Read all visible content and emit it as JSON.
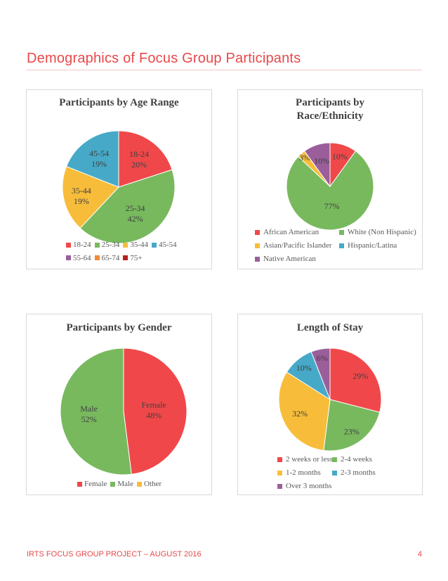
{
  "page": {
    "title": "Demographics of Focus Group Participants",
    "footer": "IRTS FOCUS GROUP PROJECT – AUGUST 2016",
    "page_number": "4"
  },
  "colors": {
    "red": "#f0484a",
    "green": "#78b95e",
    "yellow": "#f7bd3a",
    "blue": "#46a9c8",
    "purple": "#9a5f9a",
    "orange": "#f08a3a",
    "darkred": "#b81f1f",
    "accent": "#e8484a"
  },
  "chart_data": [
    {
      "type": "pie",
      "title": "Participants by Age Range",
      "slices": [
        {
          "label": "18-24",
          "value": 20,
          "color": "#f0484a",
          "text": "18-24\n20%"
        },
        {
          "label": "25-34",
          "value": 42,
          "color": "#78b95e",
          "text": "25-34\n42%"
        },
        {
          "label": "35-44",
          "value": 19,
          "color": "#f7bd3a",
          "text": "35-44\n19%"
        },
        {
          "label": "45-54",
          "value": 19,
          "color": "#46a9c8",
          "text": "45-54\n19%"
        }
      ],
      "legend": [
        {
          "label": "18-24",
          "color": "#f0484a"
        },
        {
          "label": "25-34",
          "color": "#78b95e"
        },
        {
          "label": "35-44",
          "color": "#f7bd3a"
        },
        {
          "label": "45-54",
          "color": "#46a9c8"
        },
        {
          "label": "55-64",
          "color": "#9a5f9a"
        },
        {
          "label": "65-74",
          "color": "#f08a3a"
        },
        {
          "label": "75+",
          "color": "#b81f1f"
        }
      ],
      "legend_position": "bottom"
    },
    {
      "type": "pie",
      "title": "Participants by Race/Ethnicity",
      "title_lines": [
        "Participants by",
        "Race/Ethnicity"
      ],
      "slices": [
        {
          "label": "African American",
          "value": 10,
          "color": "#f0484a",
          "text": "10%"
        },
        {
          "label": "White (Non Hispanic)",
          "value": 77,
          "color": "#78b95e",
          "text": "77%"
        },
        {
          "label": "Asian/Pacific Islander",
          "value": 3,
          "color": "#f7bd3a",
          "text": "3%"
        },
        {
          "label": "Hispanic/Latina",
          "value": 0,
          "color": "#46a9c8",
          "text": ""
        },
        {
          "label": "Native American",
          "value": 10,
          "color": "#9a5f9a",
          "text": "10%"
        }
      ],
      "legend": [
        {
          "label": "African American",
          "color": "#f0484a"
        },
        {
          "label": "White (Non Hispanic)",
          "color": "#78b95e"
        },
        {
          "label": "Asian/Pacific Islander",
          "color": "#f7bd3a"
        },
        {
          "label": "Hispanic/Latina",
          "color": "#46a9c8"
        },
        {
          "label": "Native American",
          "color": "#9a5f9a"
        }
      ],
      "legend_position": "bottom"
    },
    {
      "type": "pie",
      "title": "Participants by Gender",
      "slices": [
        {
          "label": "Female",
          "value": 48,
          "color": "#f0484a",
          "text": "Female\n48%"
        },
        {
          "label": "Male",
          "value": 52,
          "color": "#78b95e",
          "text": "Male\n52%"
        },
        {
          "label": "Other",
          "value": 0,
          "color": "#f7bd3a",
          "text": ""
        }
      ],
      "legend": [
        {
          "label": "Female",
          "color": "#f0484a"
        },
        {
          "label": "Male",
          "color": "#78b95e"
        },
        {
          "label": "Other",
          "color": "#f7bd3a"
        }
      ],
      "legend_position": "bottom"
    },
    {
      "type": "pie",
      "title": "Length of Stay",
      "slices": [
        {
          "label": "2 weeks or less",
          "value": 29,
          "color": "#f0484a",
          "text": "29%"
        },
        {
          "label": "2-4 weeks",
          "value": 23,
          "color": "#78b95e",
          "text": "23%"
        },
        {
          "label": "1-2 months",
          "value": 32,
          "color": "#f7bd3a",
          "text": "32%"
        },
        {
          "label": "2-3 months",
          "value": 10,
          "color": "#46a9c8",
          "text": "10%"
        },
        {
          "label": "Over 3 months",
          "value": 6,
          "color": "#9a5f9a",
          "text": "6%"
        }
      ],
      "legend": [
        {
          "label": "2 weeks or less",
          "color": "#f0484a"
        },
        {
          "label": "2-4 weeks",
          "color": "#78b95e"
        },
        {
          "label": "1-2 months",
          "color": "#f7bd3a"
        },
        {
          "label": "2-3 months",
          "color": "#46a9c8"
        },
        {
          "label": "Over 3 months",
          "color": "#9a5f9a"
        }
      ],
      "legend_position": "bottom"
    }
  ]
}
